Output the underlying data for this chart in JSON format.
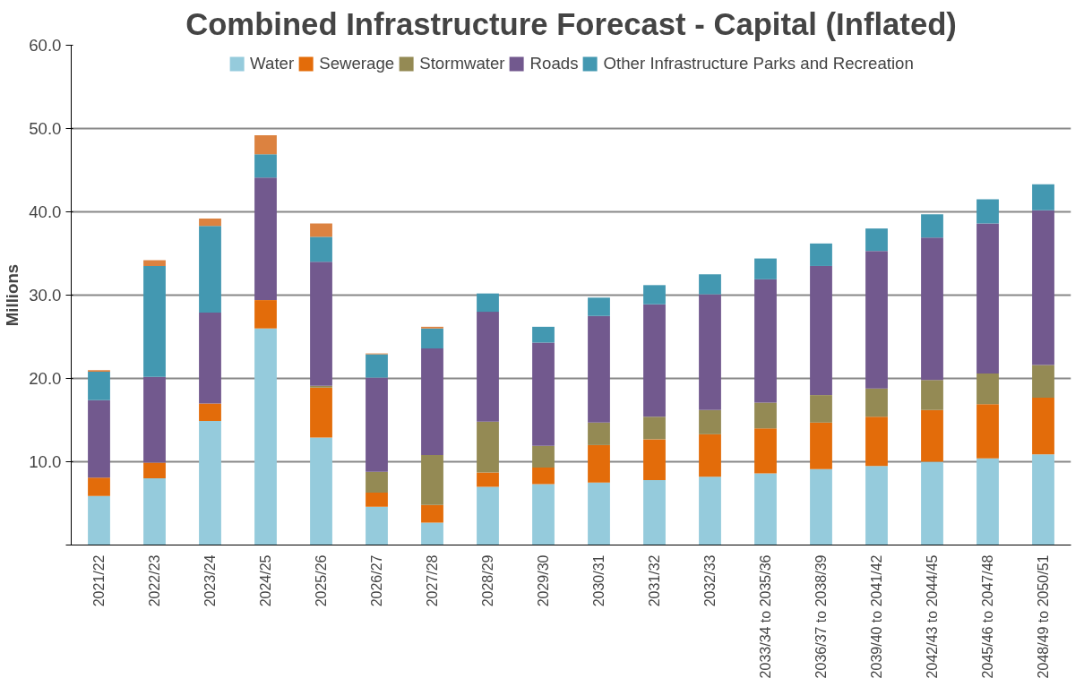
{
  "chart_data": {
    "type": "bar",
    "stacked": true,
    "title": "Combined Infrastructure Forecast - Capital (Inflated)",
    "ylabel": "Millions",
    "categories": [
      "2021/22",
      "2022/23",
      "2023/24",
      "2024/25",
      "2025/26",
      "2026/27",
      "2027/28",
      "2028/29",
      "2029/30",
      "2030/31",
      "2031/32",
      "2032/33",
      "2033/34 to 2035/36",
      "2036/37 to 2038/39",
      "2039/40 to 2041/42",
      "2042/43 to 2044/45",
      "2045/46 to 2047/48",
      "2048/49 to 2050/51"
    ],
    "series": [
      {
        "name": "Water",
        "color": "#95cbdc",
        "values": [
          5.9,
          8.0,
          14.9,
          26.0,
          12.9,
          4.6,
          2.7,
          7.0,
          7.3,
          7.5,
          7.8,
          8.2,
          8.6,
          9.1,
          9.5,
          10.0,
          10.4,
          10.9
        ]
      },
      {
        "name": "Sewerage",
        "color": "#e36c0a",
        "values": [
          2.2,
          1.9,
          2.1,
          3.4,
          6.0,
          1.7,
          2.1,
          1.7,
          2.0,
          4.5,
          4.9,
          5.1,
          5.4,
          5.6,
          5.9,
          6.2,
          6.5,
          6.8
        ]
      },
      {
        "name": "Stormwater",
        "color": "#948a54",
        "values": [
          0,
          0,
          0,
          0,
          0.2,
          2.5,
          6.0,
          6.1,
          2.6,
          2.7,
          2.7,
          2.9,
          3.1,
          3.3,
          3.4,
          3.6,
          3.7,
          3.9
        ]
      },
      {
        "name": "Roads",
        "color": "#72598e",
        "values": [
          9.3,
          10.3,
          10.9,
          14.7,
          14.9,
          11.3,
          12.8,
          13.2,
          12.4,
          12.8,
          13.5,
          13.9,
          14.8,
          15.5,
          16.5,
          17.1,
          18.0,
          18.6
        ]
      },
      {
        "name": "Other Infrastructure Parks and Recreation",
        "color": "#4398b1",
        "values": [
          3.4,
          13.3,
          10.4,
          2.8,
          3.0,
          2.8,
          2.4,
          2.2,
          1.9,
          2.2,
          2.3,
          2.4,
          2.5,
          2.7,
          2.7,
          2.8,
          2.9,
          3.1
        ]
      },
      {
        "color": "#dc8240",
        "values": [
          0.2,
          0.7,
          0.9,
          2.3,
          1.6,
          0.1,
          0.2,
          0,
          0,
          0,
          0,
          0,
          0,
          0,
          0,
          0,
          0,
          0
        ]
      }
    ],
    "ylim": [
      0,
      60
    ],
    "yticks": [
      {
        "value": 0,
        "label": null
      },
      {
        "value": 10,
        "label": "10.0"
      },
      {
        "value": 20,
        "label": "20.0"
      },
      {
        "value": 30,
        "label": "30.0"
      },
      {
        "value": 40,
        "label": "40.0"
      },
      {
        "value": 50,
        "label": "50.0"
      },
      {
        "value": 60,
        "label": "60.0"
      }
    ],
    "grid": "y",
    "legend": "top"
  }
}
